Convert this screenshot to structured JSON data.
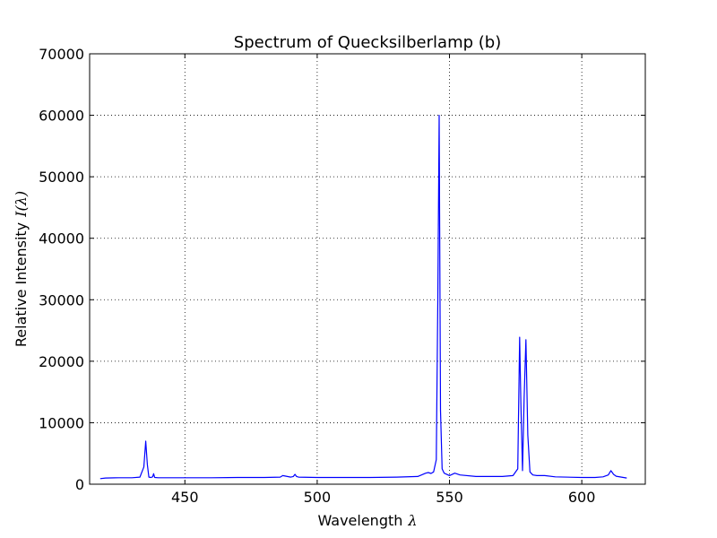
{
  "chart_data": {
    "type": "line",
    "title": "Spectrum of Quecksilberlamp (b)",
    "xlabel": "Wavelength",
    "xlabel_symbol": "λ",
    "ylabel": "Relative Intensity",
    "ylabel_symbol": "I(λ)",
    "xlim": [
      414,
      624
    ],
    "ylim": [
      0,
      70000
    ],
    "x_ticks": [
      450,
      500,
      550,
      600
    ],
    "y_ticks": [
      0,
      10000,
      20000,
      30000,
      40000,
      50000,
      60000,
      70000
    ],
    "grid": true,
    "legend": "none",
    "series": [
      {
        "color": "#0000ff",
        "x": [
          418,
          420,
          425,
          430,
          433,
          434.5,
          435.2,
          435.8,
          436.4,
          437.2,
          437.8,
          438.2,
          438.6,
          440,
          450,
          460,
          470,
          480,
          486,
          487,
          490,
          491,
          491.6,
          492.2,
          493,
          500,
          510,
          520,
          530,
          538,
          541,
          542,
          543,
          544,
          545,
          545.6,
          546.1,
          546.6,
          547.2,
          548,
          550,
          552,
          554,
          560,
          570,
          574,
          575.8,
          576.5,
          577.0,
          577.6,
          578.2,
          578.9,
          579.6,
          580.4,
          581.5,
          583,
          586,
          590,
          600,
          605,
          608,
          610,
          611,
          612,
          613,
          615,
          617
        ],
        "y": [
          900,
          1000,
          1050,
          1050,
          1150,
          2800,
          7000,
          3200,
          1150,
          1100,
          1200,
          1700,
          1100,
          1050,
          1050,
          1050,
          1100,
          1100,
          1150,
          1400,
          1150,
          1250,
          1600,
          1250,
          1150,
          1100,
          1100,
          1100,
          1150,
          1250,
          1800,
          1900,
          1750,
          2000,
          4000,
          30000,
          60000,
          12000,
          2500,
          1800,
          1400,
          1800,
          1500,
          1250,
          1250,
          1400,
          2500,
          23900,
          13000,
          2200,
          14000,
          23500,
          8000,
          2000,
          1500,
          1400,
          1400,
          1200,
          1100,
          1100,
          1200,
          1500,
          2200,
          1600,
          1300,
          1150,
          1000
        ]
      }
    ]
  }
}
